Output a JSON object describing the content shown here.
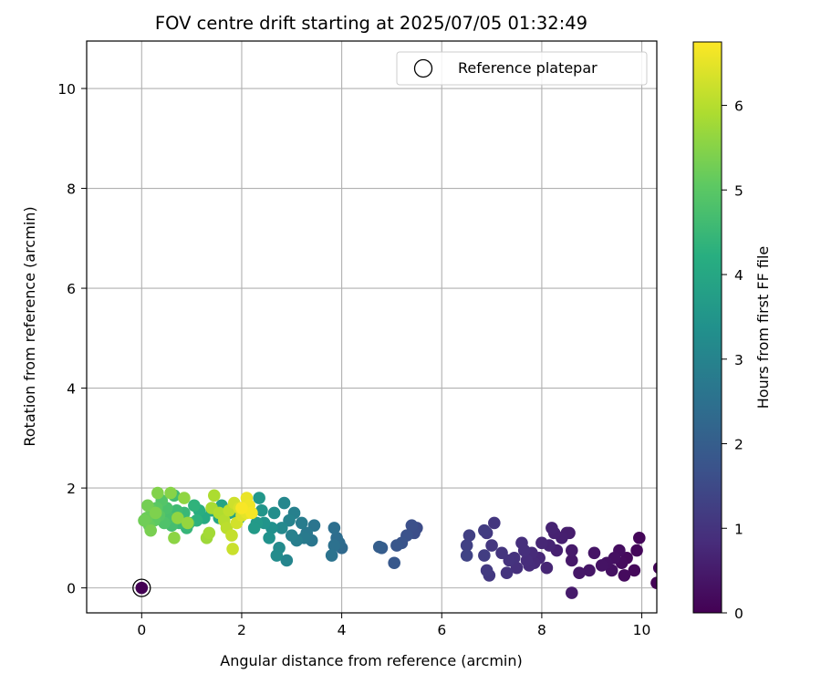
{
  "chart_data": {
    "type": "scatter",
    "title": "FOV centre drift starting at 2025/07/05 01:32:49",
    "xlabel": "Angular distance from reference (arcmin)",
    "ylabel": "Rotation from reference (arcmin)",
    "xlim": [
      -1.1,
      10.3
    ],
    "ylim": [
      -0.5,
      10.95
    ],
    "xticks": [
      0,
      2,
      4,
      6,
      8,
      10
    ],
    "yticks": [
      0,
      2,
      4,
      6,
      8,
      10
    ],
    "grid": true,
    "legend": {
      "position": "top-right",
      "entries": [
        "Reference platepar"
      ]
    },
    "reference_point": {
      "x": 0,
      "y": 0,
      "label": "Reference platepar"
    },
    "colorbar": {
      "label": "Hours from first FF file",
      "colormap": "viridis",
      "range": [
        0,
        6.75
      ],
      "ticks": [
        0,
        1,
        2,
        3,
        4,
        5,
        6
      ]
    },
    "points": [
      [
        0.0,
        0.0,
        0.0
      ],
      [
        10.3,
        0.1,
        0.05
      ],
      [
        10.35,
        0.4,
        0.08
      ],
      [
        9.95,
        1.0,
        0.1
      ],
      [
        9.9,
        0.75,
        0.12
      ],
      [
        9.85,
        0.35,
        0.15
      ],
      [
        9.7,
        0.6,
        0.18
      ],
      [
        9.65,
        0.25,
        0.2
      ],
      [
        9.6,
        0.5,
        0.22
      ],
      [
        9.55,
        0.75,
        0.25
      ],
      [
        9.45,
        0.6,
        0.28
      ],
      [
        9.4,
        0.35,
        0.3
      ],
      [
        9.3,
        0.5,
        0.32
      ],
      [
        9.2,
        0.45,
        0.35
      ],
      [
        9.05,
        0.7,
        0.38
      ],
      [
        8.95,
        0.35,
        0.4
      ],
      [
        8.75,
        0.3,
        0.42
      ],
      [
        8.6,
        0.55,
        0.45
      ],
      [
        8.6,
        0.75,
        0.48
      ],
      [
        8.6,
        -0.1,
        0.5
      ],
      [
        8.55,
        1.1,
        0.52
      ],
      [
        8.5,
        1.1,
        0.55
      ],
      [
        8.4,
        1.0,
        0.58
      ],
      [
        8.3,
        0.75,
        0.6
      ],
      [
        8.25,
        1.1,
        0.62
      ],
      [
        8.2,
        1.2,
        0.65
      ],
      [
        8.15,
        0.85,
        0.68
      ],
      [
        8.1,
        0.4,
        0.7
      ],
      [
        8.0,
        0.9,
        0.72
      ],
      [
        7.95,
        0.6,
        0.75
      ],
      [
        7.85,
        0.5,
        0.78
      ],
      [
        7.8,
        0.7,
        0.8
      ],
      [
        7.75,
        0.45,
        0.82
      ],
      [
        7.7,
        0.55,
        0.85
      ],
      [
        7.65,
        0.75,
        0.88
      ],
      [
        7.6,
        0.9,
        0.9
      ],
      [
        7.5,
        0.4,
        0.92
      ],
      [
        7.45,
        0.6,
        0.95
      ],
      [
        7.35,
        0.55,
        0.98
      ],
      [
        7.3,
        0.3,
        1.0
      ],
      [
        7.2,
        0.7,
        1.02
      ],
      [
        7.05,
        1.3,
        1.05
      ],
      [
        7.0,
        0.85,
        1.08
      ],
      [
        6.95,
        0.25,
        1.1
      ],
      [
        6.9,
        1.1,
        1.12
      ],
      [
        6.9,
        0.35,
        1.15
      ],
      [
        6.85,
        1.15,
        1.18
      ],
      [
        6.85,
        0.65,
        1.2
      ],
      [
        6.55,
        1.05,
        1.25
      ],
      [
        6.5,
        0.85,
        1.3
      ],
      [
        6.5,
        0.65,
        1.35
      ],
      [
        5.5,
        1.2,
        1.55
      ],
      [
        5.45,
        1.1,
        1.6
      ],
      [
        5.4,
        1.25,
        1.65
      ],
      [
        5.3,
        1.05,
        1.7
      ],
      [
        5.2,
        0.9,
        1.75
      ],
      [
        5.1,
        0.85,
        1.8
      ],
      [
        5.05,
        0.5,
        1.85
      ],
      [
        4.8,
        0.8,
        1.95
      ],
      [
        4.75,
        0.82,
        2.0
      ],
      [
        4.0,
        0.8,
        2.3
      ],
      [
        3.95,
        0.9,
        2.35
      ],
      [
        3.9,
        1.0,
        2.4
      ],
      [
        3.85,
        1.2,
        2.45
      ],
      [
        3.85,
        0.85,
        2.5
      ],
      [
        3.8,
        0.65,
        2.55
      ],
      [
        3.45,
        1.25,
        2.6
      ],
      [
        3.4,
        0.95,
        2.65
      ],
      [
        3.3,
        1.1,
        2.7
      ],
      [
        3.25,
        1.0,
        2.75
      ],
      [
        3.2,
        1.3,
        2.8
      ],
      [
        3.1,
        0.95,
        2.85
      ],
      [
        3.05,
        1.5,
        2.9
      ],
      [
        3.0,
        1.05,
        2.95
      ],
      [
        2.95,
        1.35,
        3.0
      ],
      [
        2.9,
        0.55,
        3.05
      ],
      [
        2.85,
        1.7,
        3.1
      ],
      [
        2.8,
        1.2,
        3.15
      ],
      [
        2.75,
        0.8,
        3.2
      ],
      [
        2.7,
        0.65,
        3.25
      ],
      [
        2.65,
        1.5,
        3.3
      ],
      [
        2.6,
        1.2,
        3.35
      ],
      [
        2.55,
        1.0,
        3.4
      ],
      [
        2.45,
        1.3,
        3.45
      ],
      [
        2.4,
        1.55,
        3.5
      ],
      [
        2.35,
        1.8,
        3.55
      ],
      [
        2.3,
        1.3,
        3.6
      ],
      [
        2.25,
        1.2,
        3.65
      ],
      [
        1.95,
        1.4,
        3.8
      ],
      [
        1.75,
        1.5,
        3.85
      ],
      [
        1.6,
        1.65,
        3.9
      ],
      [
        1.55,
        1.4,
        3.95
      ],
      [
        1.4,
        1.55,
        4.0
      ],
      [
        1.25,
        1.4,
        4.1
      ],
      [
        1.15,
        1.55,
        4.2
      ],
      [
        1.1,
        1.35,
        4.3
      ],
      [
        1.05,
        1.65,
        4.35
      ],
      [
        0.95,
        1.3,
        4.4
      ],
      [
        0.9,
        1.2,
        4.45
      ],
      [
        0.85,
        1.5,
        4.5
      ],
      [
        0.75,
        1.3,
        4.55
      ],
      [
        0.7,
        1.55,
        4.6
      ],
      [
        0.65,
        1.85,
        4.65
      ],
      [
        0.6,
        1.25,
        4.7
      ],
      [
        0.55,
        1.4,
        4.75
      ],
      [
        0.5,
        1.6,
        4.8
      ],
      [
        0.45,
        1.3,
        4.85
      ],
      [
        0.4,
        1.75,
        4.9
      ],
      [
        0.35,
        1.45,
        4.95
      ],
      [
        0.3,
        1.6,
        5.0
      ],
      [
        0.25,
        1.35,
        5.05
      ],
      [
        0.2,
        1.55,
        5.1
      ],
      [
        0.15,
        1.25,
        5.15
      ],
      [
        0.1,
        1.4,
        5.2
      ],
      [
        0.05,
        1.35,
        5.25
      ],
      [
        0.12,
        1.65,
        5.3
      ],
      [
        0.18,
        1.15,
        5.35
      ],
      [
        0.28,
        1.5,
        5.4
      ],
      [
        0.32,
        1.9,
        5.45
      ],
      [
        0.58,
        1.9,
        5.5
      ],
      [
        0.65,
        1.0,
        5.55
      ],
      [
        0.72,
        1.4,
        5.6
      ],
      [
        0.85,
        1.8,
        5.6
      ],
      [
        0.92,
        1.3,
        5.65
      ],
      [
        1.3,
        1.0,
        5.75
      ],
      [
        1.35,
        1.1,
        5.8
      ],
      [
        1.4,
        1.6,
        5.85
      ],
      [
        1.45,
        1.85,
        5.9
      ],
      [
        1.55,
        1.5,
        5.95
      ],
      [
        1.65,
        1.35,
        6.0
      ],
      [
        1.7,
        1.2,
        6.05
      ],
      [
        1.75,
        1.55,
        6.1
      ],
      [
        1.8,
        1.05,
        6.15
      ],
      [
        1.82,
        0.78,
        6.2
      ],
      [
        1.85,
        1.7,
        6.25
      ],
      [
        1.9,
        1.3,
        6.3
      ],
      [
        1.95,
        1.6,
        6.35
      ],
      [
        2.0,
        1.45,
        6.4
      ],
      [
        2.05,
        1.55,
        6.45
      ],
      [
        2.1,
        1.5,
        6.5
      ],
      [
        2.1,
        1.8,
        6.55
      ],
      [
        2.15,
        1.65,
        6.6
      ],
      [
        2.2,
        1.5,
        6.65
      ],
      [
        2.0,
        1.6,
        6.7
      ]
    ]
  }
}
